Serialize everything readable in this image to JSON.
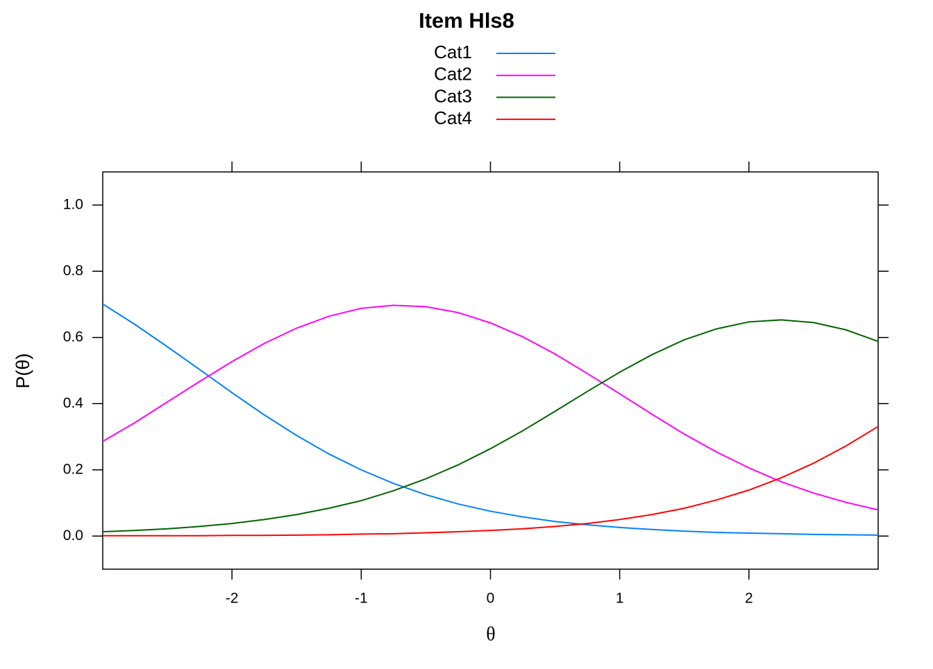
{
  "chart_data": {
    "type": "line",
    "title": "Item Hls8",
    "xlabel": "θ",
    "ylabel": "P(θ)",
    "x": [
      -3,
      -2.75,
      -2.5,
      -2.25,
      -2,
      -1.75,
      -1.5,
      -1.25,
      -1,
      -0.75,
      -0.5,
      -0.25,
      0,
      0.25,
      0.5,
      0.75,
      1,
      1.25,
      1.5,
      1.75,
      2,
      2.25,
      2.5,
      2.75,
      3
    ],
    "series": [
      {
        "name": "Cat1",
        "color": "#0080ff",
        "values": [
          0.701,
          0.639,
          0.572,
          0.503,
          0.433,
          0.366,
          0.304,
          0.248,
          0.2,
          0.159,
          0.125,
          0.097,
          0.075,
          0.058,
          0.044,
          0.034,
          0.026,
          0.02,
          0.015,
          0.011,
          0.009,
          0.007,
          0.005,
          0.004,
          0.003
        ]
      },
      {
        "name": "Cat2",
        "color": "#ff00ff",
        "values": [
          0.286,
          0.343,
          0.405,
          0.467,
          0.527,
          0.582,
          0.628,
          0.664,
          0.688,
          0.697,
          0.693,
          0.675,
          0.644,
          0.602,
          0.55,
          0.491,
          0.43,
          0.368,
          0.308,
          0.254,
          0.206,
          0.164,
          0.13,
          0.102,
          0.079
        ]
      },
      {
        "name": "Cat3",
        "color": "#006400",
        "values": [
          0.013,
          0.017,
          0.022,
          0.029,
          0.038,
          0.05,
          0.065,
          0.084,
          0.107,
          0.137,
          0.173,
          0.215,
          0.264,
          0.318,
          0.377,
          0.437,
          0.495,
          0.548,
          0.593,
          0.626,
          0.647,
          0.653,
          0.645,
          0.623,
          0.588
        ]
      },
      {
        "name": "Cat4",
        "color": "#ff0000",
        "values": [
          0.001,
          0.001,
          0.001,
          0.001,
          0.002,
          0.002,
          0.003,
          0.004,
          0.006,
          0.007,
          0.01,
          0.013,
          0.017,
          0.022,
          0.029,
          0.038,
          0.05,
          0.065,
          0.084,
          0.109,
          0.139,
          0.176,
          0.22,
          0.272,
          0.331
        ]
      }
    ],
    "xlim": [
      -3,
      3
    ],
    "xticks": [
      -2,
      -1,
      0,
      1,
      2
    ],
    "ylim": [
      -0.1,
      1.1
    ],
    "yticks": [
      {
        "value": 0,
        "label": "0.0"
      },
      0.2,
      0.4,
      0.6,
      0.8,
      {
        "value": 1,
        "label": "1.0"
      }
    ]
  }
}
